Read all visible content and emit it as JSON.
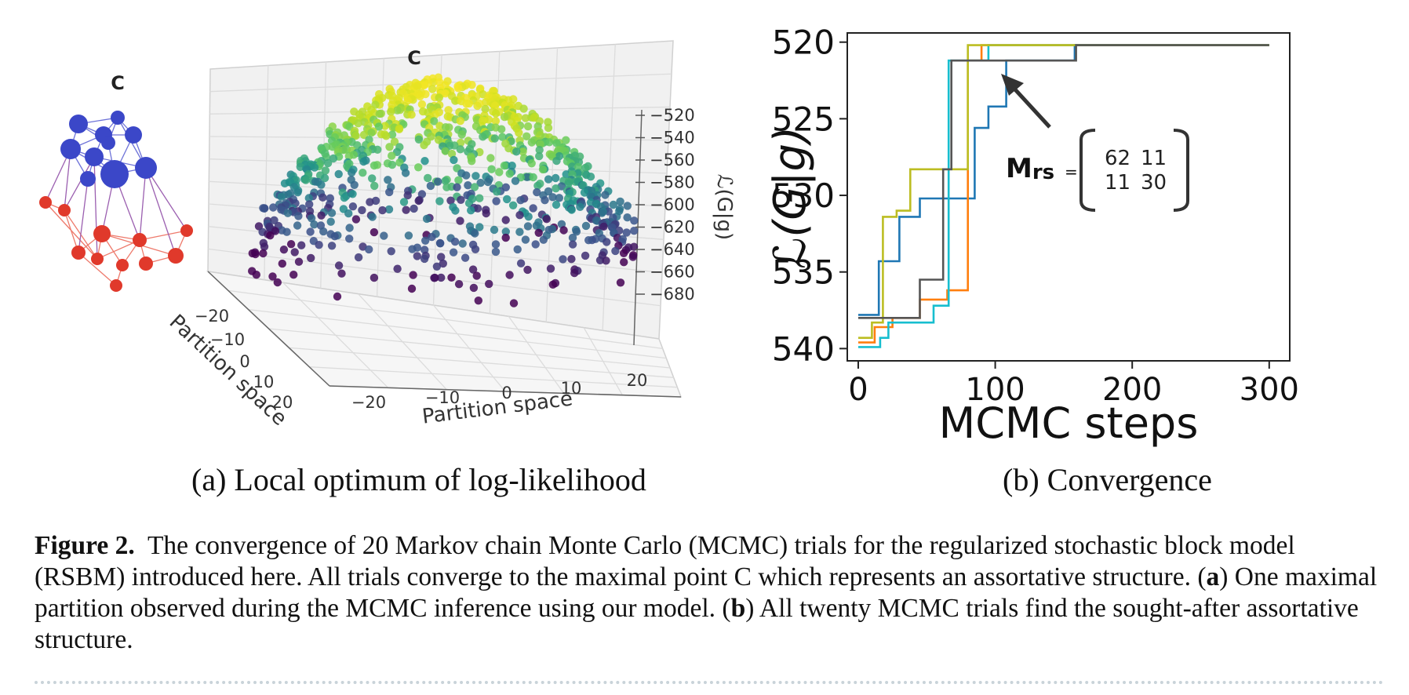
{
  "panel_a": {
    "network_label": "C",
    "plot3d_label": "C",
    "zaxis_label": "ℒ(G|g)",
    "z_ticks": [
      "−520",
      "−540",
      "−560",
      "−580",
      "−600",
      "−620",
      "−640",
      "−660",
      "−680"
    ],
    "x_axis_label": "Partition space",
    "x_ticks": [
      "−20",
      "−10",
      "0",
      "10",
      "20"
    ],
    "y_axis_label": "Partition space",
    "y_ticks": [
      "−20",
      "−10",
      "0",
      "10",
      "20"
    ],
    "subcaption": "(a) Local optimum of log-likelihood",
    "colors": {
      "group1": "#3b47c8",
      "group2": "#e0392b",
      "edge1": "#6d72d8",
      "edge2": "#ee7a6c",
      "edge_between": "#9b5fb0"
    }
  },
  "panel_b": {
    "subcaption": "(b) Convergence",
    "annotation": {
      "label_main": "M",
      "label_sub": "rs",
      "equals": "=",
      "matrix": [
        [
          "62",
          "11"
        ],
        [
          "11",
          "30"
        ]
      ]
    }
  },
  "chart_data": {
    "type": "line",
    "title": "",
    "xlabel": "MCMC steps",
    "ylabel": "ℒ(G|g)",
    "xlim": [
      -8,
      315
    ],
    "ylim": [
      -540.8,
      -519.4
    ],
    "x_ticks": [
      0,
      100,
      200,
      300
    ],
    "x_tick_labels": [
      "0",
      "100",
      "200",
      "300"
    ],
    "y_ticks": [
      -520,
      -525,
      -530,
      -535,
      -540
    ],
    "y_tick_labels": [
      "−520",
      "−525",
      "−530",
      "−535",
      "−540"
    ],
    "series": [
      {
        "color": "#1f77b4",
        "points": [
          [
            0,
            -537.8
          ],
          [
            15,
            -537.8
          ],
          [
            15,
            -534.3
          ],
          [
            30,
            -534.3
          ],
          [
            30,
            -531.4
          ],
          [
            45,
            -531.4
          ],
          [
            45,
            -530.2
          ],
          [
            85,
            -530.2
          ],
          [
            85,
            -525.6
          ],
          [
            95,
            -525.6
          ],
          [
            95,
            -524.2
          ],
          [
            108,
            -524.2
          ],
          [
            108,
            -521.2
          ],
          [
            158,
            -521.2
          ],
          [
            158,
            -520.2
          ],
          [
            300,
            -520.2
          ]
        ]
      },
      {
        "color": "#ff7f0e",
        "points": [
          [
            0,
            -539.6
          ],
          [
            12,
            -539.6
          ],
          [
            12,
            -538.6
          ],
          [
            25,
            -538.6
          ],
          [
            25,
            -538.0
          ],
          [
            45,
            -538.0
          ],
          [
            45,
            -536.8
          ],
          [
            65,
            -536.8
          ],
          [
            65,
            -536.2
          ],
          [
            80,
            -536.2
          ],
          [
            80,
            -521.2
          ],
          [
            90,
            -521.2
          ],
          [
            90,
            -520.2
          ],
          [
            300,
            -520.2
          ]
        ]
      },
      {
        "color": "#17becf",
        "points": [
          [
            0,
            -539.9
          ],
          [
            16,
            -539.9
          ],
          [
            16,
            -539.3
          ],
          [
            22,
            -539.3
          ],
          [
            22,
            -538.3
          ],
          [
            55,
            -538.3
          ],
          [
            55,
            -537.2
          ],
          [
            66,
            -537.2
          ],
          [
            66,
            -521.2
          ],
          [
            95,
            -521.2
          ],
          [
            95,
            -520.2
          ],
          [
            300,
            -520.2
          ]
        ]
      },
      {
        "color": "#bcbd22",
        "points": [
          [
            0,
            -539.3
          ],
          [
            10,
            -539.3
          ],
          [
            10,
            -538.3
          ],
          [
            18,
            -538.3
          ],
          [
            18,
            -531.4
          ],
          [
            28,
            -531.4
          ],
          [
            28,
            -531.0
          ],
          [
            38,
            -531.0
          ],
          [
            38,
            -528.3
          ],
          [
            80,
            -528.3
          ],
          [
            80,
            -520.2
          ],
          [
            300,
            -520.2
          ]
        ]
      },
      {
        "color": "#555555",
        "points": [
          [
            0,
            -538.0
          ],
          [
            45,
            -538.0
          ],
          [
            45,
            -535.5
          ],
          [
            62,
            -535.5
          ],
          [
            62,
            -528.3
          ],
          [
            68,
            -528.3
          ],
          [
            68,
            -521.2
          ],
          [
            159,
            -521.2
          ],
          [
            159,
            -520.2
          ],
          [
            300,
            -520.2
          ]
        ]
      }
    ],
    "grid": false,
    "legend": "none"
  },
  "caption": {
    "label": "Figure 2.",
    "text_1": "The convergence of 20 Markov chain Monte Carlo (MCMC) trials for the regularized stochastic block model (RSBM) introduced here. All trials converge to the maximal point C which represents an assortative structure. (",
    "a_bold": "a",
    "text_2": ") One maximal partition observed during the MCMC inference using our model. (",
    "b_bold": "b",
    "text_3": ") All twenty MCMC trials find the sought-after assortative structure."
  }
}
